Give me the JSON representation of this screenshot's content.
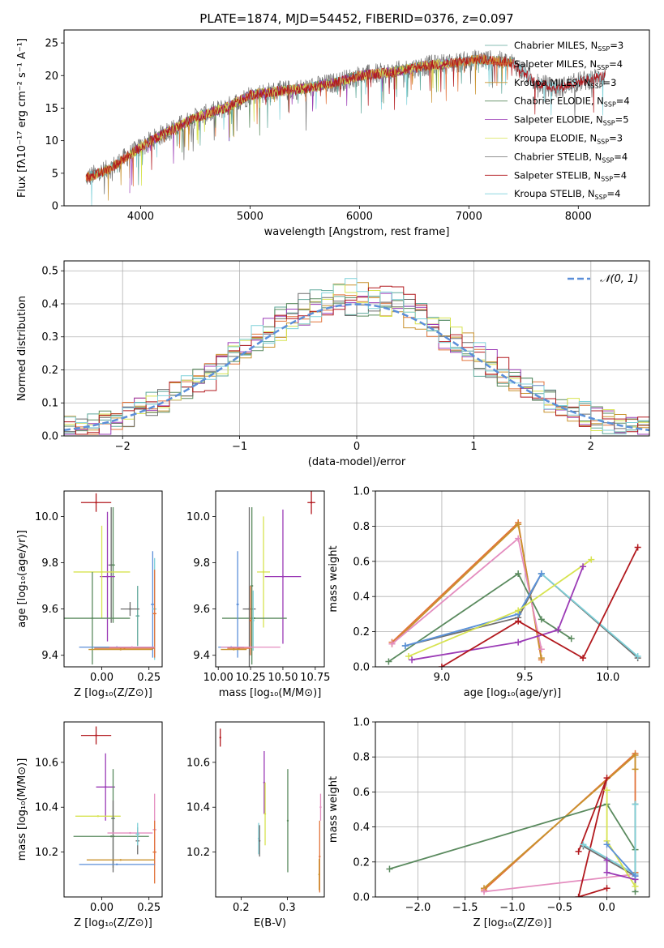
{
  "colors": {
    "Chabrier MILES": "#5fa89a",
    "Salpeter MILES": "#e2733a",
    "Kroupa MILES": "#c9922e",
    "Chabrier ELODIE": "#5a8a5e",
    "Salpeter ELODIE": "#9b3bb6",
    "Kroupa ELODIE": "#d7e350",
    "Chabrier STELIB": "#6d6d6d",
    "Salpeter STELIB": "#b2191e",
    "Kroupa STELIB": "#7fd1d9",
    "pink": "#e48dbf",
    "blue": "#5b8fd9",
    "gaussian": "#5b8fd9"
  },
  "chart_data": [
    {
      "id": "spectrum",
      "type": "line",
      "title": "PLATE=1874, MJD=54452, FIBERID=0376, z=0.097",
      "xlabel": "wavelength [Angstrom, rest frame]",
      "ylabel": "Flux [fλ10⁻¹⁷ erg cm⁻² s⁻¹ A⁻¹]",
      "xlim": [
        3300,
        8650
      ],
      "ylim": [
        0,
        27
      ],
      "xticks": [
        4000,
        5000,
        6000,
        7000,
        8000
      ],
      "yticks": [
        0,
        5,
        10,
        15,
        20,
        25
      ],
      "grid": false,
      "legend_position": "upper right",
      "continuum_x": [
        3500,
        3700,
        4000,
        4200,
        4500,
        4800,
        5000,
        5200,
        5500,
        5800,
        6000,
        6300,
        6600,
        6900,
        7100,
        7400,
        7600,
        7800,
        8000,
        8250
      ],
      "continuum_y": [
        4.3,
        5.5,
        9.0,
        11.0,
        13.5,
        15.2,
        17.0,
        17.5,
        18.0,
        19.0,
        20.0,
        20.5,
        21.5,
        22.0,
        22.5,
        22.0,
        19.0,
        18.0,
        19.0,
        20.0
      ],
      "series": [
        {
          "name": "Chabrier MILES, N_SSP=3",
          "color_key": "Chabrier MILES",
          "x_range": [
            3500,
            7400
          ]
        },
        {
          "name": "Salpeter MILES, N_SSP=4",
          "color_key": "Salpeter MILES",
          "x_range": [
            3500,
            7400
          ]
        },
        {
          "name": "Kroupa MILES, N_SSP=3",
          "color_key": "Kroupa MILES",
          "x_range": [
            3500,
            7400
          ]
        },
        {
          "name": "Chabrier ELODIE, N_SSP=4",
          "color_key": "Chabrier ELODIE",
          "x_range": [
            3900,
            6800
          ]
        },
        {
          "name": "Salpeter ELODIE, N_SSP=5",
          "color_key": "Salpeter ELODIE",
          "x_range": [
            3900,
            6800
          ]
        },
        {
          "name": "Kroupa ELODIE, N_SSP=3",
          "color_key": "Kroupa ELODIE",
          "x_range": [
            3900,
            6800
          ]
        },
        {
          "name": "Chabrier STELIB, N_SSP=4",
          "color_key": "Chabrier STELIB",
          "x_range": [
            3500,
            8250
          ]
        },
        {
          "name": "Salpeter STELIB, N_SSP=4",
          "color_key": "Salpeter STELIB",
          "x_range": [
            3500,
            8250
          ]
        },
        {
          "name": "Kroupa STELIB, N_SSP=4",
          "color_key": "Kroupa STELIB",
          "x_range": [
            3500,
            8250
          ]
        }
      ]
    },
    {
      "id": "residuals",
      "type": "line",
      "xlabel": "(data-model)/error",
      "ylabel": "Normed distribution",
      "xlim": [
        -2.5,
        2.5
      ],
      "ylim": [
        0,
        0.53
      ],
      "xticks": [
        -2,
        -1,
        0,
        1,
        2
      ],
      "yticks": [
        0.0,
        0.1,
        0.2,
        0.3,
        0.4,
        0.5
      ],
      "grid": true,
      "legend_position": "upper right",
      "legend": "𝒩(0, 1)",
      "bin_width": 0.1,
      "bin_edges_from": -2.5,
      "series_colors": [
        "Chabrier MILES",
        "Salpeter MILES",
        "Kroupa MILES",
        "Chabrier ELODIE",
        "Salpeter ELODIE",
        "Kroupa ELODIE",
        "Chabrier STELIB",
        "Salpeter STELIB",
        "Kroupa STELIB"
      ]
    },
    {
      "id": "age_vs_Z",
      "type": "scatter",
      "xlabel": "Z [log₁₀(Z/Z⊙)]",
      "ylabel": "age  [log₁₀(age/yr)]",
      "xlim": [
        -0.2,
        0.32
      ],
      "ylim": [
        9.35,
        10.11
      ],
      "xticks": [
        0.0,
        0.25
      ],
      "xticklabels": [
        "0.00",
        "0.25"
      ],
      "yticks": [
        9.4,
        9.6,
        9.8,
        10.0
      ],
      "grid": false,
      "points": [
        {
          "color": "Salpeter STELIB",
          "x": -0.03,
          "xerr": 0.08,
          "y": 10.06,
          "yerr": 0.04
        },
        {
          "color": "Chabrier STELIB",
          "x": 0.05,
          "xerr": 0.015,
          "y": 9.79,
          "yerr": 0.25
        },
        {
          "color": "Chabrier ELODIE",
          "x": 0.06,
          "xerr": 0.01,
          "y": 9.79,
          "yerr": 0.25
        },
        {
          "color": "Salpeter ELODIE",
          "x": 0.03,
          "xerr": 0.04,
          "y": 9.74,
          "yerr": 0.28
        },
        {
          "color": "Kroupa ELODIE",
          "x": 0.0,
          "xerr": 0.15,
          "y": 9.76,
          "yerr": 0.2
        },
        {
          "color": "Chabrier MILES",
          "x": 0.19,
          "xerr": 0.01,
          "y": 9.57,
          "yerr": 0.13
        },
        {
          "color": "Chabrier ELODIE",
          "x": -0.05,
          "xerr": 0.2,
          "y": 9.56,
          "yerr": 0.2
        },
        {
          "color": "Chabrier STELIB",
          "x": 0.15,
          "xerr": 0.05,
          "y": 9.6,
          "yerr": 0.03
        },
        {
          "color": "blue",
          "x": 0.27,
          "xerr": 0.01,
          "y": 9.62,
          "yerr": 0.23
        },
        {
          "color": "Kroupa STELIB",
          "x": 0.28,
          "xerr": 0.01,
          "y": 9.6,
          "yerr": 0.22
        },
        {
          "color": "Salpeter MILES",
          "x": 0.28,
          "xerr": 0.01,
          "y": 9.58,
          "yerr": 0.19
        },
        {
          "color": "blue",
          "x": 0.08,
          "xerr": 0.2,
          "y": 9.435,
          "yerr": 0.0
        },
        {
          "color": "Salpeter MILES",
          "x": 0.12,
          "xerr": 0.16,
          "y": 9.43,
          "yerr": 0.0
        },
        {
          "color": "pink",
          "x": 0.16,
          "xerr": 0.12,
          "y": 9.435,
          "yerr": 0.0
        },
        {
          "color": "Kroupa MILES",
          "x": 0.1,
          "xerr": 0.17,
          "y": 9.425,
          "yerr": 0.0
        }
      ]
    },
    {
      "id": "age_vs_mass",
      "type": "scatter",
      "xlabel": "mass [log₁₀(M/M⊙)]",
      "ylabel": "",
      "xlim": [
        9.98,
        10.82
      ],
      "ylim": [
        9.35,
        10.11
      ],
      "xticks": [
        10.0,
        10.25,
        10.5,
        10.75
      ],
      "xticklabels": [
        "10.00",
        "10.25",
        "10.50",
        "10.75"
      ],
      "yticks": [
        9.4,
        9.6,
        9.8,
        10.0
      ],
      "grid": false,
      "points": [
        {
          "color": "Salpeter STELIB",
          "x": 10.72,
          "xerr": 0.03,
          "y": 10.06,
          "yerr": 0.05
        },
        {
          "color": "Salpeter ELODIE",
          "x": 10.5,
          "xerr": 0.14,
          "y": 9.74,
          "yerr": 0.29
        },
        {
          "color": "Kroupa ELODIE",
          "x": 10.35,
          "xerr": 0.05,
          "y": 9.76,
          "yerr": 0.24
        },
        {
          "color": "Chabrier ELODIE",
          "x": 10.28,
          "xerr": 0.25,
          "y": 9.56,
          "yerr": 0.0
        },
        {
          "color": "Chabrier STELIB",
          "x": 10.24,
          "xerr": 0.05,
          "y": 9.6,
          "yerr": 0.44
        },
        {
          "color": "Chabrier ELODIE",
          "x": 10.26,
          "xerr": 0.01,
          "y": 9.7,
          "yerr": 0.34
        },
        {
          "color": "Kroupa STELIB",
          "x": 10.27,
          "xerr": 0.01,
          "y": 9.55,
          "yerr": 0.13
        },
        {
          "color": "blue",
          "x": 10.15,
          "xerr": 0.01,
          "y": 9.62,
          "yerr": 0.23
        },
        {
          "color": "Salpeter MILES",
          "x": 10.25,
          "xerr": 0.01,
          "y": 9.55,
          "yerr": 0.15
        },
        {
          "color": "blue",
          "x": 10.1,
          "xerr": 0.1,
          "y": 9.435,
          "yerr": 0.0
        },
        {
          "color": "Salpeter MILES",
          "x": 10.16,
          "xerr": 0.09,
          "y": 9.43,
          "yerr": 0.0
        },
        {
          "color": "pink",
          "x": 10.25,
          "xerr": 0.23,
          "y": 9.435,
          "yerr": 0.0
        },
        {
          "color": "Kroupa MILES",
          "x": 10.12,
          "xerr": 0.1,
          "y": 9.425,
          "yerr": 0.0
        }
      ]
    },
    {
      "id": "weight_vs_age",
      "type": "line",
      "xlabel": "age  [log₁₀(age/yr)]",
      "ylabel": "mass weight",
      "xlim": [
        8.6,
        10.25
      ],
      "ylim": [
        0,
        1.0
      ],
      "xticks": [
        9.0,
        9.5,
        10.0
      ],
      "yticks": [
        0.0,
        0.2,
        0.4,
        0.6,
        0.8,
        1.0
      ],
      "grid": true,
      "series": [
        {
          "color": "Salpeter MILES",
          "x": [
            8.7,
            9.46,
            9.6
          ],
          "y": [
            0.14,
            0.82,
            0.04
          ]
        },
        {
          "color": "Kroupa MILES",
          "x": [
            8.7,
            9.46,
            9.6
          ],
          "y": [
            0.13,
            0.81,
            0.05
          ]
        },
        {
          "color": "pink",
          "x": [
            8.7,
            9.46,
            9.6
          ],
          "y": [
            0.13,
            0.73,
            0.1
          ]
        },
        {
          "color": "Chabrier ELODIE",
          "x": [
            8.68,
            9.46,
            9.6,
            9.78
          ],
          "y": [
            0.03,
            0.53,
            0.27,
            0.16
          ]
        },
        {
          "color": "Chabrier STELIB",
          "x": [
            8.78,
            9.46,
            9.6,
            10.18
          ],
          "y": [
            0.12,
            0.28,
            0.53,
            0.05
          ]
        },
        {
          "color": "Kroupa STELIB",
          "x": [
            8.78,
            9.46,
            9.6,
            10.18
          ],
          "y": [
            0.12,
            0.3,
            0.53,
            0.06
          ]
        },
        {
          "color": "blue",
          "x": [
            8.78,
            9.46,
            9.6
          ],
          "y": [
            0.12,
            0.3,
            0.53
          ]
        },
        {
          "color": "Kroupa ELODIE",
          "x": [
            8.8,
            9.46,
            9.9
          ],
          "y": [
            0.06,
            0.32,
            0.61
          ]
        },
        {
          "color": "Salpeter ELODIE",
          "x": [
            8.82,
            9.46,
            9.7,
            9.85
          ],
          "y": [
            0.04,
            0.14,
            0.21,
            0.57
          ]
        },
        {
          "color": "Salpeter STELIB",
          "x": [
            9.0,
            9.46,
            9.85,
            10.18
          ],
          "y": [
            0.0,
            0.26,
            0.05,
            0.68
          ]
        }
      ]
    },
    {
      "id": "mass_vs_Z",
      "type": "scatter",
      "xlabel": "Z [log₁₀(Z/Z⊙)]",
      "ylabel": "mass [log₁₀(M/M⊙)]",
      "xlim": [
        -0.2,
        0.32
      ],
      "ylim": [
        10.0,
        10.78
      ],
      "xticks": [
        0.0,
        0.25
      ],
      "xticklabels": [
        "0.00",
        "0.25"
      ],
      "yticks": [
        10.2,
        10.4,
        10.6
      ],
      "grid": false,
      "points": [
        {
          "color": "Salpeter STELIB",
          "x": -0.03,
          "xerr": 0.08,
          "y": 10.72,
          "yerr": 0.04
        },
        {
          "color": "Salpeter ELODIE",
          "x": 0.02,
          "xerr": 0.05,
          "y": 10.49,
          "yerr": 0.15
        },
        {
          "color": "Chabrier ELODIE",
          "x": 0.06,
          "xerr": 0.01,
          "y": 10.35,
          "yerr": 0.22
        },
        {
          "color": "Kroupa ELODIE",
          "x": -0.02,
          "xerr": 0.12,
          "y": 10.36,
          "yerr": 0.0
        },
        {
          "color": "Chabrier STELIB",
          "x": 0.06,
          "xerr": 0.01,
          "y": 10.27,
          "yerr": 0.16
        },
        {
          "color": "Chabrier ELODIE",
          "x": 0.05,
          "xerr": 0.2,
          "y": 10.27,
          "yerr": 0.0
        },
        {
          "color": "pink",
          "x": 0.15,
          "xerr": 0.12,
          "y": 10.285,
          "yerr": 0.0
        },
        {
          "color": "Chabrier STELIB",
          "x": 0.19,
          "xerr": 0.01,
          "y": 10.25,
          "yerr": 0.06
        },
        {
          "color": "Kroupa STELIB",
          "x": 0.19,
          "xerr": 0.01,
          "y": 10.28,
          "yerr": 0.05
        },
        {
          "color": "pink",
          "x": 0.28,
          "xerr": 0.01,
          "y": 10.3,
          "yerr": 0.16
        },
        {
          "color": "Salpeter MILES",
          "x": 0.28,
          "xerr": 0.01,
          "y": 10.2,
          "yerr": 0.14
        },
        {
          "color": "Kroupa MILES",
          "x": 0.1,
          "xerr": 0.18,
          "y": 10.165,
          "yerr": 0.0
        },
        {
          "color": "blue",
          "x": 0.08,
          "xerr": 0.2,
          "y": 10.145,
          "yerr": 0.0
        }
      ]
    },
    {
      "id": "mass_vs_ebv",
      "type": "scatter",
      "xlabel": "E(B-V)",
      "ylabel": "",
      "xlim": [
        0.145,
        0.38
      ],
      "ylim": [
        10.0,
        10.78
      ],
      "xticks": [
        0.2,
        0.3
      ],
      "xticklabels": [
        "0.2",
        "0.3"
      ],
      "yticks": [
        10.2,
        10.4,
        10.6
      ],
      "grid": false,
      "points": [
        {
          "color": "Salpeter STELIB",
          "x": 0.155,
          "xerr": 0.0,
          "y": 10.71,
          "yerr": 0.04
        },
        {
          "color": "Salpeter ELODIE",
          "x": 0.25,
          "xerr": 0.0,
          "y": 10.51,
          "yerr": 0.14
        },
        {
          "color": "Kroupa ELODIE",
          "x": 0.252,
          "xerr": 0.0,
          "y": 10.37,
          "yerr": 0.14
        },
        {
          "color": "Kroupa STELIB",
          "x": 0.238,
          "xerr": 0.0,
          "y": 10.26,
          "yerr": 0.07
        },
        {
          "color": "Chabrier STELIB",
          "x": 0.24,
          "xerr": 0.0,
          "y": 10.25,
          "yerr": 0.07
        },
        {
          "color": "Chabrier ELODIE",
          "x": 0.301,
          "xerr": 0.0,
          "y": 10.34,
          "yerr": 0.23
        },
        {
          "color": "Salpeter MILES",
          "x": 0.37,
          "xerr": 0.0,
          "y": 10.18,
          "yerr": 0.16
        },
        {
          "color": "pink",
          "x": 0.372,
          "xerr": 0.0,
          "y": 10.4,
          "yerr": 0.06
        },
        {
          "color": "Kroupa MILES",
          "x": 0.369,
          "xerr": 0.0,
          "y": 10.1,
          "yerr": 0.07
        }
      ]
    },
    {
      "id": "weight_vs_Z",
      "type": "line",
      "xlabel": "Z [log₁₀(Z/Z⊙)]",
      "ylabel": "mass weight",
      "xlim": [
        -2.45,
        0.45
      ],
      "ylim": [
        0,
        1.0
      ],
      "xticks": [
        -2.0,
        -1.5,
        -1.0,
        -0.5,
        0.0
      ],
      "yticks": [
        0.0,
        0.2,
        0.4,
        0.6,
        0.8,
        1.0
      ],
      "grid": true,
      "series": [
        {
          "color": "Salpeter MILES",
          "x": [
            -1.3,
            0.3,
            0.3
          ],
          "y": [
            0.04,
            0.82,
            0.14
          ]
        },
        {
          "color": "Kroupa MILES",
          "x": [
            -1.3,
            0.3,
            0.3
          ],
          "y": [
            0.05,
            0.81,
            0.73
          ]
        },
        {
          "color": "pink",
          "x": [
            -1.3,
            0.3
          ],
          "y": [
            0.03,
            0.13
          ]
        },
        {
          "color": "Chabrier ELODIE",
          "x": [
            -2.3,
            0.0,
            0.3,
            0.3
          ],
          "y": [
            0.16,
            0.53,
            0.27,
            0.03
          ]
        },
        {
          "color": "Salpeter STELIB",
          "x": [
            -0.3,
            0.0,
            -0.3,
            0.0
          ],
          "y": [
            0.26,
            0.68,
            0.0,
            0.05
          ]
        },
        {
          "color": "Chabrier STELIB",
          "x": [
            -0.25,
            0.3,
            0.3
          ],
          "y": [
            0.29,
            0.12,
            0.53
          ]
        },
        {
          "color": "Kroupa STELIB",
          "x": [
            -0.25,
            0.3,
            0.3
          ],
          "y": [
            0.3,
            0.13,
            0.53
          ]
        },
        {
          "color": "Kroupa ELODIE",
          "x": [
            0.0,
            0.0,
            0.3
          ],
          "y": [
            0.61,
            0.32,
            0.06
          ]
        },
        {
          "color": "Salpeter ELODIE",
          "x": [
            0.0,
            0.0,
            0.3
          ],
          "y": [
            0.21,
            0.14,
            0.1
          ]
        },
        {
          "color": "blue",
          "x": [
            0.0,
            0.3
          ],
          "y": [
            0.3,
            0.12
          ]
        }
      ]
    }
  ]
}
